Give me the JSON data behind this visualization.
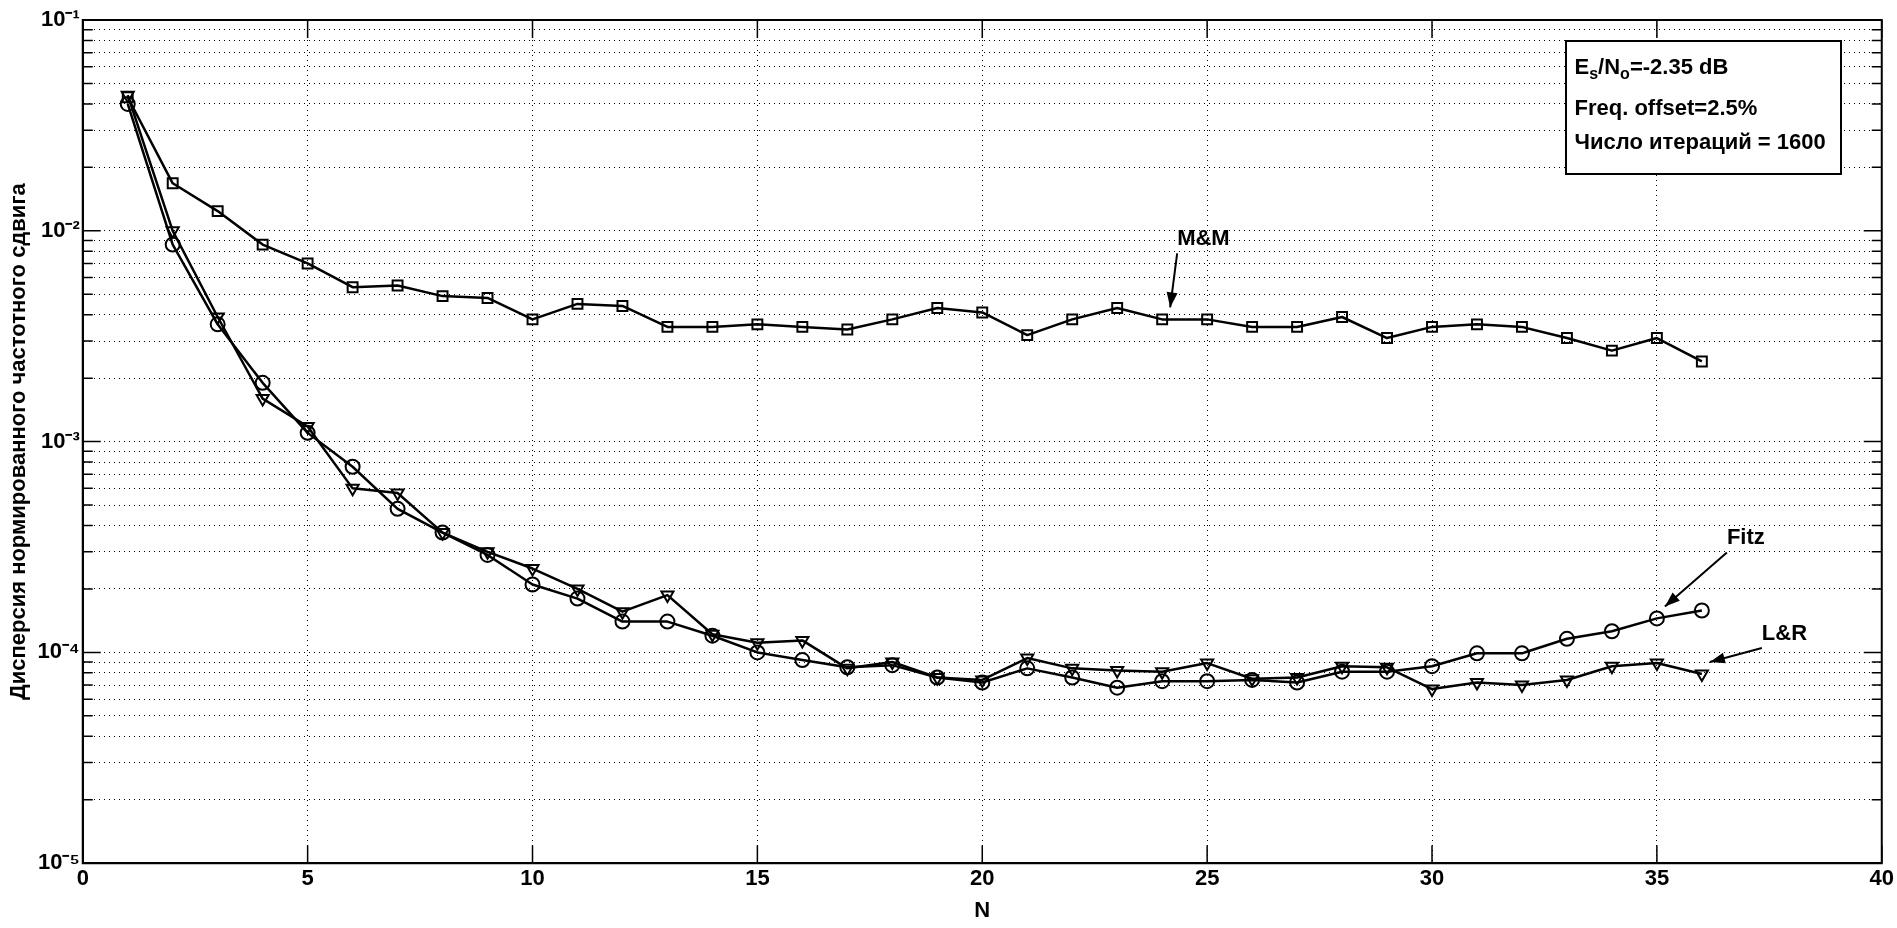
{
  "chart_data": {
    "type": "line",
    "xlabel": "N",
    "ylabel": "Дисперсия нормированного частотного сдвига",
    "annotations": [
      "E$_{s}$/N$_{o}$=-2.35 dB",
      "Freq. offset=2.5%",
      "Число итераций = 1600"
    ],
    "x": [
      1,
      2,
      3,
      4,
      5,
      6,
      7,
      8,
      9,
      10,
      11,
      12,
      13,
      14,
      15,
      16,
      17,
      18,
      19,
      20,
      21,
      22,
      23,
      24,
      25,
      26,
      27,
      28,
      29,
      30,
      31,
      32,
      33,
      34,
      35,
      36
    ],
    "series": [
      {
        "name": "M&M",
        "color": "#000000",
        "marker": "square",
        "values": [
          0.043,
          0.0168,
          0.0124,
          0.0086,
          0.007,
          0.0054,
          0.0055,
          0.0049,
          0.0048,
          0.0038,
          0.0045,
          0.0044,
          0.0035,
          0.0035,
          0.0036,
          0.0035,
          0.0034,
          0.0038,
          0.0043,
          0.0041,
          0.0032,
          0.0038,
          0.0043,
          0.0038,
          0.0038,
          0.0035,
          0.0035,
          0.0039,
          0.0031,
          0.0035,
          0.0036,
          0.0035,
          0.0031,
          0.0027,
          0.0031,
          0.0024
        ]
      },
      {
        "name": "Fitz",
        "color": "#000000",
        "marker": "circle",
        "values": [
          0.04,
          0.0086,
          0.0036,
          0.0019,
          0.0011,
          0.00076,
          0.00048,
          0.00037,
          0.00029,
          0.00021,
          0.00018,
          0.00014,
          0.00014,
          0.00012,
          0.0001,
          9.2e-05,
          8.5e-05,
          8.7e-05,
          7.6e-05,
          7.2e-05,
          8.4e-05,
          7.6e-05,
          6.8e-05,
          7.3e-05,
          7.3e-05,
          7.4e-05,
          7.2e-05,
          8.1e-05,
          8.1e-05,
          8.6e-05,
          9.9e-05,
          9.9e-05,
          0.000116,
          0.000126,
          0.000145,
          0.000158
        ]
      },
      {
        "name": "L&R",
        "color": "#000000",
        "marker": "triangle",
        "values": [
          0.044,
          0.01,
          0.0039,
          0.0016,
          0.00118,
          0.0006,
          0.00057,
          0.00037,
          0.0003,
          0.00025,
          0.0002,
          0.000156,
          0.000187,
          0.000122,
          0.000111,
          0.000114,
          8.4e-05,
          9e-05,
          7.6e-05,
          7.4e-05,
          9.4e-05,
          8.4e-05,
          8.2e-05,
          8.1e-05,
          8.9e-05,
          7.5e-05,
          7.6e-05,
          8.6e-05,
          8.5e-05,
          6.7e-05,
          7.2e-05,
          7e-05,
          7.4e-05,
          8.6e-05,
          8.9e-05,
          7.9e-05
        ]
      }
    ],
    "log": "y",
    "grid": true,
    "legend": false,
    "line_style": "solid",
    "xlim": [
      0,
      40
    ],
    "xticks": [
      0,
      5,
      10,
      15,
      20,
      25,
      30,
      35,
      40
    ],
    "ylim": [
      1e-05,
      0.1
    ],
    "yticks": [
      {
        "value": 1e-05,
        "label": "10⁻⁵"
      },
      {
        "value": 2e-05,
        "label": null
      },
      {
        "value": 3e-05,
        "label": null
      },
      {
        "value": 4e-05,
        "label": null
      },
      {
        "value": 5e-05,
        "label": null
      },
      {
        "value": 6e-05,
        "label": null
      },
      {
        "value": 7e-05,
        "label": null
      },
      {
        "value": 8e-05,
        "label": null
      },
      {
        "value": 9e-05,
        "label": null
      },
      {
        "value": 0.0001,
        "label": "10⁻⁴"
      },
      {
        "value": 0.0002,
        "label": null
      },
      {
        "value": 0.0003,
        "label": null
      },
      {
        "value": 0.0004,
        "label": null
      },
      {
        "value": 0.0005,
        "label": null
      },
      {
        "value": 0.0006,
        "label": null
      },
      {
        "value": 0.0007,
        "label": null
      },
      {
        "value": 0.0008,
        "label": null
      },
      {
        "value": 0.0009,
        "label": null
      },
      {
        "value": 0.001,
        "label": "10⁻³"
      },
      {
        "value": 0.002,
        "label": null
      },
      {
        "value": 0.003,
        "label": null
      },
      {
        "value": 0.004,
        "label": null
      },
      {
        "value": 0.005,
        "label": null
      },
      {
        "value": 0.006,
        "label": null
      },
      {
        "value": 0.007,
        "label": null
      },
      {
        "value": 0.008,
        "label": null
      },
      {
        "value": 0.009,
        "label": null
      },
      {
        "value": 0.01,
        "label": "10⁻²"
      },
      {
        "value": 0.02,
        "label": null
      },
      {
        "value": 0.03,
        "label": null
      },
      {
        "value": 0.04,
        "label": null
      },
      {
        "value": 0.05,
        "label": null
      },
      {
        "value": 0.06,
        "label": null
      },
      {
        "value": 0.07,
        "label": null
      },
      {
        "value": 0.08,
        "label": null
      },
      {
        "value": 0.09,
        "label": null
      },
      {
        "value": 0.1,
        "label": "10⁻¹"
      }
    ]
  }
}
